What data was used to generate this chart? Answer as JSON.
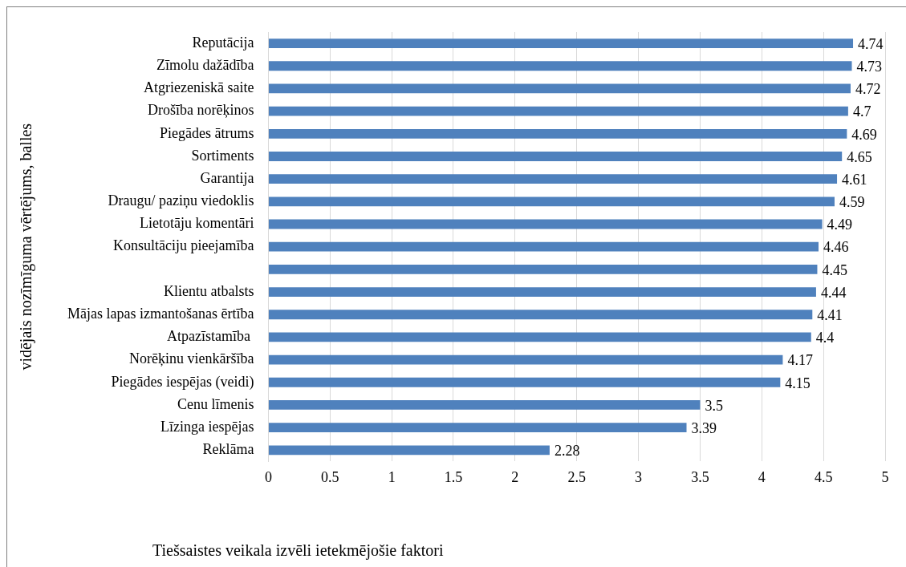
{
  "chart_data": {
    "type": "bar",
    "orientation": "horizontal",
    "xlabel": "Tiešsaistes veikala izvēli ietekmējošie faktori",
    "ylabel": "vidējais nozīmīguma vērtējums, balles",
    "categories": [
      "Reputācija",
      "Zīmolu dažādība",
      "Atgriezeniskā saite",
      "Drošība norēķinos",
      "Piegādes ātrums",
      "Sortiments",
      "Garantija",
      "Draugu/ paziņu viedoklis",
      "Lietotāju komentāri",
      "Konsultāciju pieejamība",
      null,
      "Klientu atbalsts",
      "Mājas lapas izmantošanas ērtība",
      "Atpazīstamība ",
      "Norēķinu vienkāršība",
      "Piegādes iespējas (veidi)",
      "Cenu līmenis",
      "Līzinga iespējas",
      "Reklāma"
    ],
    "values": [
      4.74,
      4.73,
      4.72,
      4.7,
      4.69,
      4.65,
      4.61,
      4.59,
      4.49,
      4.46,
      4.45,
      4.44,
      4.41,
      4.4,
      4.17,
      4.15,
      3.5,
      3.39,
      2.28
    ],
    "color": "#4f81bd",
    "xlim": [
      0,
      5
    ],
    "xticks": [
      0,
      0.5,
      1,
      1.5,
      2,
      2.5,
      3,
      3.5,
      4,
      4.5,
      5
    ],
    "grid": "x",
    "legend": false,
    "data_labels": true
  }
}
